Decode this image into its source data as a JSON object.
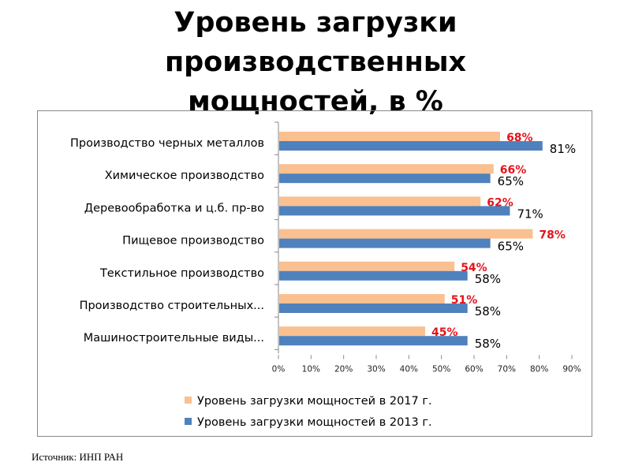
{
  "title_lines": [
    "Уровень загрузки",
    "производственных",
    "мощностей, в %"
  ],
  "source": "Источник: ИНП РАН",
  "chart_data": {
    "type": "bar",
    "orientation": "horizontal",
    "title": "Уровень загрузки производственных мощностей, в %",
    "categories": [
      "Производство черных металлов",
      "Химическое производство",
      "Деревообработка и ц.б. пр-во",
      "Пищевое производство",
      "Текстильное производство",
      "Производство строительных...",
      "Машиностроительные виды..."
    ],
    "series": [
      {
        "name": "Уровень загрузки мощностей в 2017 г.",
        "color": "#FAC090",
        "label_color": "#E3141B",
        "values": [
          68,
          66,
          62,
          78,
          54,
          51,
          45
        ],
        "labels": [
          "68%",
          "66%",
          "62%",
          "78%",
          "54%",
          "51%",
          "45%"
        ]
      },
      {
        "name": "Уровень загрузки мощностей в 2013 г.",
        "color": "#4F81BD",
        "label_color": "#000000",
        "values": [
          81,
          65,
          71,
          65,
          58,
          58,
          58
        ],
        "labels": [
          "81%",
          "65%",
          "71%",
          "65%",
          "58%",
          "58%",
          "58%"
        ]
      }
    ],
    "xlim": [
      0,
      90
    ],
    "xticks": [
      "0%",
      "10%",
      "20%",
      "30%",
      "40%",
      "50%",
      "60%",
      "70%",
      "80%",
      "90%"
    ],
    "grid": false,
    "legend_position": "bottom"
  }
}
